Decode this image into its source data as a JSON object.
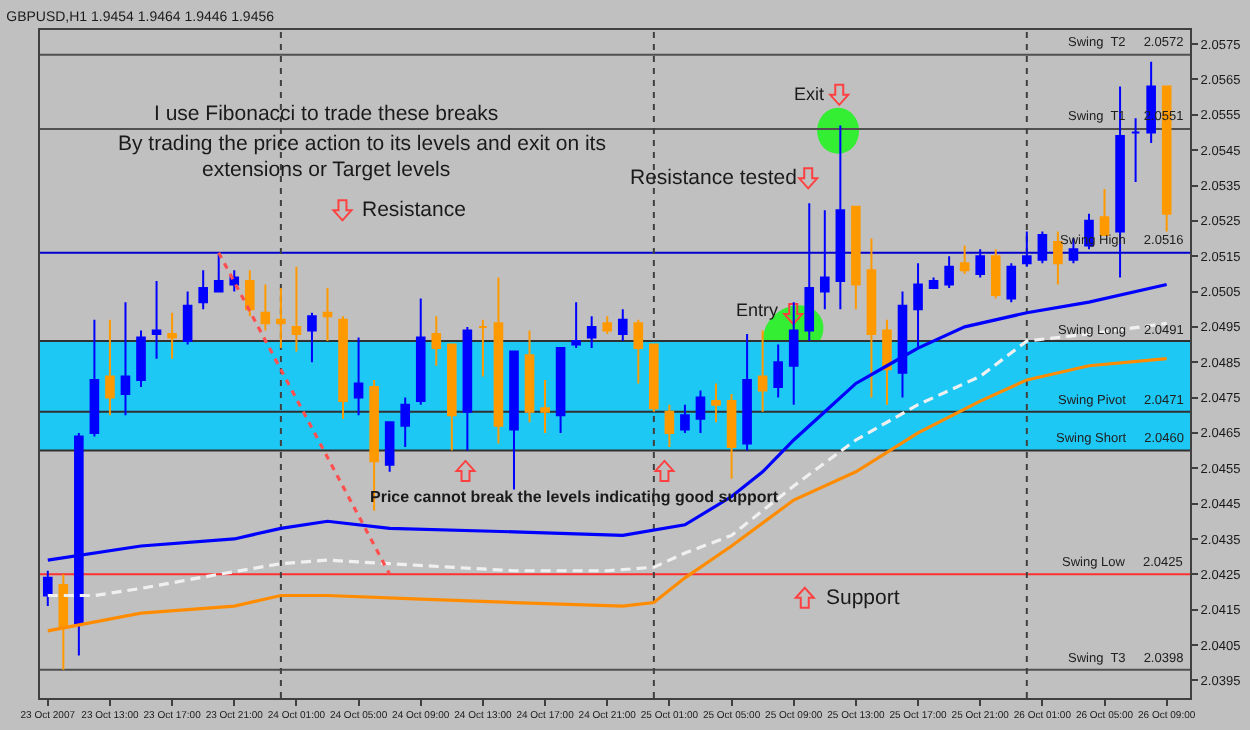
{
  "chart_data": {
    "type": "candlestick",
    "title": "GBPUSD,H1 1.9454 1.9464 1.9446 1.9456",
    "x": [
      "2007-10-23T09:00",
      "2007-10-23T10:00",
      "2007-10-23T11:00",
      "2007-10-23T12:00",
      "2007-10-23T13:00",
      "2007-10-23T14:00",
      "2007-10-23T15:00",
      "2007-10-23T16:00",
      "2007-10-23T17:00",
      "2007-10-23T18:00",
      "2007-10-23T19:00",
      "2007-10-23T20:00",
      "2007-10-23T21:00",
      "2007-10-23T22:00",
      "2007-10-23T23:00",
      "2007-10-24T00:00",
      "2007-10-24T01:00",
      "2007-10-24T02:00",
      "2007-10-24T03:00",
      "2007-10-24T04:00",
      "2007-10-24T05:00",
      "2007-10-24T06:00",
      "2007-10-24T07:00",
      "2007-10-24T08:00",
      "2007-10-24T09:00",
      "2007-10-24T10:00",
      "2007-10-24T11:00",
      "2007-10-24T12:00",
      "2007-10-24T13:00",
      "2007-10-24T14:00",
      "2007-10-24T15:00",
      "2007-10-24T16:00",
      "2007-10-24T17:00",
      "2007-10-24T18:00",
      "2007-10-24T19:00",
      "2007-10-24T20:00",
      "2007-10-24T21:00",
      "2007-10-24T22:00",
      "2007-10-24T23:00",
      "2007-10-25T00:00",
      "2007-10-25T01:00",
      "2007-10-25T02:00",
      "2007-10-25T03:00",
      "2007-10-25T04:00",
      "2007-10-25T05:00",
      "2007-10-25T06:00",
      "2007-10-25T07:00",
      "2007-10-25T08:00",
      "2007-10-25T09:00",
      "2007-10-25T10:00",
      "2007-10-25T11:00",
      "2007-10-25T12:00",
      "2007-10-25T13:00",
      "2007-10-25T14:00",
      "2007-10-25T15:00",
      "2007-10-25T16:00",
      "2007-10-25T17:00",
      "2007-10-25T18:00",
      "2007-10-25T19:00",
      "2007-10-25T20:00",
      "2007-10-25T21:00",
      "2007-10-25T22:00",
      "2007-10-25T23:00",
      "2007-10-26T00:00",
      "2007-10-26T01:00",
      "2007-10-26T02:00",
      "2007-10-26T03:00",
      "2007-10-26T04:00",
      "2007-10-26T05:00",
      "2007-10-26T06:00",
      "2007-10-26T07:00",
      "2007-10-26T08:00",
      "2007-10-26T09:00"
    ],
    "ohlc": [
      [
        2.0419,
        2.0426,
        2.0416,
        2.0424
      ],
      [
        2.0422,
        2.0425,
        2.0398,
        2.041
      ],
      [
        2.0411,
        2.0465,
        2.0402,
        2.0464
      ],
      [
        2.0465,
        2.0497,
        2.0464,
        2.048
      ],
      [
        2.0481,
        2.0497,
        2.047,
        2.0475
      ],
      [
        2.0476,
        2.0502,
        2.047,
        2.0481
      ],
      [
        2.048,
        2.0494,
        2.0478,
        2.0492
      ],
      [
        2.0493,
        2.0508,
        2.0486,
        2.0494
      ],
      [
        2.0493,
        2.0499,
        2.0486,
        2.0492
      ],
      [
        2.0491,
        2.0505,
        2.049,
        2.0501
      ],
      [
        2.0502,
        2.0511,
        2.05,
        2.0506
      ],
      [
        2.0505,
        2.0516,
        2.0505,
        2.0508
      ],
      [
        2.0507,
        2.0511,
        2.0505,
        2.0509
      ],
      [
        2.0508,
        2.0511,
        2.0498,
        2.05
      ],
      [
        2.0499,
        2.0507,
        2.0494,
        2.0496
      ],
      [
        2.0497,
        2.0506,
        2.0489,
        2.0496
      ],
      [
        2.0495,
        2.0512,
        2.0488,
        2.0493
      ],
      [
        2.0494,
        2.0499,
        2.0485,
        2.0498
      ],
      [
        2.0499,
        2.0506,
        2.0491,
        2.0498
      ],
      [
        2.0497,
        2.0498,
        2.0469,
        2.0474
      ],
      [
        2.0475,
        2.0492,
        2.047,
        2.0479
      ],
      [
        2.0478,
        2.048,
        2.0443,
        2.0457
      ],
      [
        2.0456,
        2.0468,
        2.0454,
        2.0468
      ],
      [
        2.0467,
        2.0475,
        2.0461,
        2.0473
      ],
      [
        2.0474,
        2.0503,
        2.0473,
        2.0492
      ],
      [
        2.0493,
        2.0498,
        2.0484,
        2.0489
      ],
      [
        2.049,
        2.049,
        2.046,
        2.047
      ],
      [
        2.0471,
        2.0495,
        2.046,
        2.0494
      ],
      [
        2.0495,
        2.0497,
        2.0481,
        2.0495
      ],
      [
        2.0496,
        2.0509,
        2.0462,
        2.0467
      ],
      [
        2.0466,
        2.0488,
        2.0449,
        2.0488
      ],
      [
        2.0487,
        2.0494,
        2.0468,
        2.0471
      ],
      [
        2.0472,
        2.048,
        2.0465,
        2.0471
      ],
      [
        2.047,
        2.0489,
        2.0465,
        2.0489
      ],
      [
        2.049,
        2.0502,
        2.0489,
        2.0491
      ],
      [
        2.0492,
        2.0498,
        2.0489,
        2.0495
      ],
      [
        2.0496,
        2.0498,
        2.0493,
        2.0494
      ],
      [
        2.0493,
        2.05,
        2.0491,
        2.0497
      ],
      [
        2.0496,
        2.0497,
        2.0479,
        2.0489
      ],
      [
        2.049,
        2.049,
        2.0471,
        2.0472
      ],
      [
        2.0471,
        2.0473,
        2.0461,
        2.0465
      ],
      [
        2.0466,
        2.0473,
        2.0465,
        2.047
      ],
      [
        2.0469,
        2.0477,
        2.0465,
        2.0475
      ],
      [
        2.0474,
        2.0479,
        2.0468,
        2.0473
      ],
      [
        2.0474,
        2.0476,
        2.0452,
        2.0461
      ],
      [
        2.0462,
        2.0493,
        2.046,
        2.048
      ],
      [
        2.0481,
        2.0494,
        2.0471,
        2.0477
      ],
      [
        2.0478,
        2.049,
        2.0475,
        2.0485
      ],
      [
        2.0484,
        2.0502,
        2.0473,
        2.0494
      ],
      [
        2.0494,
        2.053,
        2.0491,
        2.0506
      ],
      [
        2.0505,
        2.0528,
        2.05,
        2.0509
      ],
      [
        2.0508,
        2.0552,
        2.05,
        2.0528
      ],
      [
        2.0529,
        2.0529,
        2.05,
        2.0507
      ],
      [
        2.0511,
        2.052,
        2.0475,
        2.0493
      ],
      [
        2.0494,
        2.0497,
        2.0473,
        2.0483
      ],
      [
        2.0482,
        2.0505,
        2.0475,
        2.0501
      ],
      [
        2.05,
        2.0513,
        2.0489,
        2.0507
      ],
      [
        2.0506,
        2.0509,
        2.0506,
        2.0508
      ],
      [
        2.0507,
        2.0515,
        2.0506,
        2.0512
      ],
      [
        2.0513,
        2.0518,
        2.051,
        2.0511
      ],
      [
        2.051,
        2.0517,
        2.0509,
        2.0515
      ],
      [
        2.0515,
        2.0517,
        2.0503,
        2.0504
      ],
      [
        2.0503,
        2.0513,
        2.0502,
        2.0512
      ],
      [
        2.0513,
        2.0522,
        2.0512,
        2.0515
      ],
      [
        2.0514,
        2.0522,
        2.0513,
        2.0521
      ],
      [
        2.0519,
        2.0522,
        2.0507,
        2.0513
      ],
      [
        2.0514,
        2.052,
        2.0513,
        2.0517
      ],
      [
        2.0518,
        2.0527,
        2.0517,
        2.0525
      ],
      [
        2.0526,
        2.0534,
        2.0521,
        2.0521
      ],
      [
        2.0522,
        2.0563,
        2.0509,
        2.0549
      ],
      [
        2.055,
        2.0554,
        2.0536,
        2.055
      ],
      [
        2.055,
        2.057,
        2.0547,
        2.0563
      ],
      [
        2.0563,
        2.0563,
        2.0522,
        2.0527
      ]
    ],
    "colors": [
      "#0000ff",
      "#ff9900",
      "#0000ff",
      "#0000ff",
      "#ff9900",
      "#0000ff",
      "#0000ff",
      "#0000ff",
      "#ff9900",
      "#0000ff",
      "#0000ff",
      "#0000ff",
      "#0000ff",
      "#ff9900",
      "#ff9900",
      "#ff9900",
      "#ff9900",
      "#0000ff",
      "#ff9900",
      "#ff9900",
      "#0000ff",
      "#ff9900",
      "#0000ff",
      "#0000ff",
      "#0000ff",
      "#ff9900",
      "#ff9900",
      "#0000ff",
      "#ff9900",
      "#ff9900",
      "#0000ff",
      "#ff9900",
      "#ff9900",
      "#0000ff",
      "#0000ff",
      "#0000ff",
      "#ff9900",
      "#0000ff",
      "#ff9900",
      "#ff9900",
      "#ff9900",
      "#0000ff",
      "#0000ff",
      "#ff9900",
      "#ff9900",
      "#0000ff",
      "#ff9900",
      "#0000ff",
      "#0000ff",
      "#0000ff",
      "#0000ff",
      "#0000ff",
      "#ff9900",
      "#ff9900",
      "#ff9900",
      "#0000ff",
      "#0000ff",
      "#0000ff",
      "#0000ff",
      "#ff9900",
      "#0000ff",
      "#ff9900",
      "#0000ff",
      "#0000ff",
      "#0000ff",
      "#ff9900",
      "#0000ff",
      "#0000ff",
      "#ff9900",
      "#0000ff",
      "#0000ff",
      "#0000ff",
      "#ff9900"
    ],
    "series": [
      {
        "type": "line",
        "color": "#0000ff",
        "line_style": "solid",
        "x": [
          "2007-10-23T09:00",
          "2007-10-23T15:00",
          "2007-10-23T21:00",
          "2007-10-24T00:00",
          "2007-10-24T03:00",
          "2007-10-24T07:00",
          "2007-10-24T15:00",
          "2007-10-24T22:00",
          "2007-10-25T02:00",
          "2007-10-25T05:00",
          "2007-10-25T07:00",
          "2007-10-25T09:00",
          "2007-10-25T11:00",
          "2007-10-25T13:00",
          "2007-10-25T15:00",
          "2007-10-25T17:00",
          "2007-10-25T20:00",
          "2007-10-26T00:00",
          "2007-10-26T04:00",
          "2007-10-26T09:00"
        ],
        "values": [
          2.0429,
          2.0433,
          2.0435,
          2.0438,
          2.044,
          2.0438,
          2.0437,
          2.0436,
          2.0439,
          2.0447,
          2.0454,
          2.0463,
          2.0471,
          2.0479,
          2.0484,
          2.0489,
          2.0495,
          2.0499,
          2.0502,
          2.0507
        ]
      },
      {
        "type": "line",
        "color": "#f0f0f0",
        "line_style": "dashed",
        "x": [
          "2007-10-23T09:00",
          "2007-10-23T12:00",
          "2007-10-23T15:00",
          "2007-10-23T20:00",
          "2007-10-24T00:00",
          "2007-10-24T03:00",
          "2007-10-24T07:00",
          "2007-10-24T15:00",
          "2007-10-24T21:00",
          "2007-10-25T00:00",
          "2007-10-25T02:00",
          "2007-10-25T05:00",
          "2007-10-25T09:00",
          "2007-10-25T13:00",
          "2007-10-25T17:00",
          "2007-10-25T21:00",
          "2007-10-26T00:00",
          "2007-10-26T04:00",
          "2007-10-26T09:00"
        ],
        "values": [
          2.0419,
          2.0419,
          2.0421,
          2.0425,
          2.0428,
          2.0429,
          2.0428,
          2.0426,
          2.0426,
          2.0427,
          2.0431,
          2.0436,
          2.045,
          2.0463,
          2.0473,
          2.0481,
          2.0491,
          2.0493,
          2.0496
        ]
      },
      {
        "type": "line",
        "color": "#ff5050",
        "line_style": "dotted",
        "x": [
          "2007-10-23T20:00",
          "2007-10-24T07:00"
        ],
        "values": [
          2.0516,
          2.0425
        ]
      },
      {
        "type": "line",
        "color": "#ff8c00",
        "line_style": "solid",
        "x": [
          "2007-10-23T09:00",
          "2007-10-23T15:00",
          "2007-10-23T21:00",
          "2007-10-24T00:00",
          "2007-10-24T03:00",
          "2007-10-24T09:00",
          "2007-10-24T15:00",
          "2007-10-24T22:00",
          "2007-10-25T00:00",
          "2007-10-25T02:00",
          "2007-10-25T05:00",
          "2007-10-25T09:00",
          "2007-10-25T13:00",
          "2007-10-25T17:00",
          "2007-10-25T21:00",
          "2007-10-26T00:00",
          "2007-10-26T04:00",
          "2007-10-26T09:00"
        ],
        "values": [
          2.0409,
          2.0414,
          2.0416,
          2.0419,
          2.0419,
          2.0418,
          2.0417,
          2.0416,
          2.0417,
          2.0424,
          2.0433,
          2.0446,
          2.0454,
          2.0465,
          2.0474,
          2.048,
          2.0484,
          2.0486
        ]
      }
    ],
    "xlim": [
      "2007-10-23T08:30",
      "2007-10-26T10:30"
    ],
    "ylim": [
      2.039,
      2.0579
    ],
    "yticks": [
      2.0395,
      2.0405,
      2.0415,
      2.0425,
      2.0435,
      2.0445,
      2.0455,
      2.0465,
      2.0475,
      2.0485,
      2.0495,
      2.0505,
      2.0515,
      2.0525,
      2.0535,
      2.0545,
      2.0555,
      2.0565,
      2.0575
    ],
    "xticks": [
      {
        "value": "2007-10-23T09:00",
        "label": "23 Oct 2007"
      },
      {
        "value": "2007-10-23T13:00",
        "label": "23 Oct 13:00"
      },
      {
        "value": "2007-10-23T17:00",
        "label": "23 Oct 17:00"
      },
      {
        "value": "2007-10-23T21:00",
        "label": "23 Oct 21:00"
      },
      {
        "value": "2007-10-24T01:00",
        "label": "24 Oct 01:00"
      },
      {
        "value": "2007-10-24T05:00",
        "label": "24 Oct 05:00"
      },
      {
        "value": "2007-10-24T09:00",
        "label": "24 Oct 09:00"
      },
      {
        "value": "2007-10-24T13:00",
        "label": "24 Oct 13:00"
      },
      {
        "value": "2007-10-24T17:00",
        "label": "24 Oct 17:00"
      },
      {
        "value": "2007-10-24T21:00",
        "label": "24 Oct 21:00"
      },
      {
        "value": "2007-10-25T01:00",
        "label": "25 Oct 01:00"
      },
      {
        "value": "2007-10-25T05:00",
        "label": "25 Oct 05:00"
      },
      {
        "value": "2007-10-25T09:00",
        "label": "25 Oct 09:00"
      },
      {
        "value": "2007-10-25T13:00",
        "label": "25 Oct 13:00"
      },
      {
        "value": "2007-10-25T17:00",
        "label": "25 Oct 17:00"
      },
      {
        "value": "2007-10-25T21:00",
        "label": "25 Oct 21:00"
      },
      {
        "value": "2007-10-26T01:00",
        "label": "26 Oct 01:00"
      },
      {
        "value": "2007-10-26T05:00",
        "label": "26 Oct 05:00"
      },
      {
        "value": "2007-10-26T09:00",
        "label": "26 Oct 09:00"
      }
    ],
    "ref_lines": [
      {
        "axis": "y",
        "value": 2.0572,
        "label": "Swing  T2     2.0572",
        "color": "#505050"
      },
      {
        "axis": "y",
        "value": 2.0551,
        "label": "Swing  T1     2.0551",
        "color": "#505050"
      },
      {
        "axis": "y",
        "value": 2.0516,
        "label": "Swing High     2.0516",
        "color": "#0000cc"
      },
      {
        "axis": "y",
        "value": 2.0491,
        "label": "Swing Long     2.0491",
        "color": "#303030"
      },
      {
        "axis": "y",
        "value": 2.0471,
        "label": "Swing Pivot     2.0471",
        "color": "#303030"
      },
      {
        "axis": "y",
        "value": 2.046,
        "label": "Swing Short     2.0460",
        "color": "#303030"
      },
      {
        "axis": "y",
        "value": 2.0425,
        "label": "Swing Low     2.0425",
        "color": "#ff3030"
      },
      {
        "axis": "y",
        "value": 2.0398,
        "label": "Swing  T3     2.0398",
        "color": "#505050"
      },
      {
        "axis": "x",
        "value": "2007-10-24T00:00",
        "color": "#404040",
        "line_style": "dotted"
      },
      {
        "axis": "x",
        "value": "2007-10-25T00:00",
        "color": "#404040",
        "line_style": "dotted"
      },
      {
        "axis": "x",
        "value": "2007-10-26T00:00",
        "color": "#404040",
        "line_style": "dotted"
      }
    ],
    "bands": [
      {
        "axis": "y",
        "from": 2.046,
        "to": 2.0491,
        "color": "#1ec8f5"
      }
    ],
    "annotations": [
      "I use Fibonacci to trade these breaks",
      "By trading the price action to its levels and exit on its",
      "extensions or Target levels",
      "Resistance",
      "Resistance tested",
      "Exit",
      "Entry",
      "Price cannot break the levels indicating good support",
      "Support"
    ]
  }
}
